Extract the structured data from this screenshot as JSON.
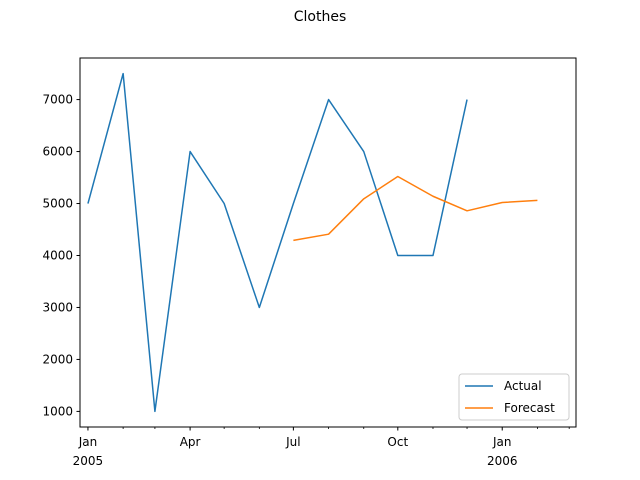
{
  "chart_data": {
    "type": "line",
    "title": "Clothes",
    "xlabel": "",
    "ylabel": "",
    "x_range": [
      "2004-12-25",
      "2006-03-07"
    ],
    "ylim": [
      700,
      7800
    ],
    "grid": false,
    "legend_placement": "lower-right",
    "y_ticks": [
      {
        "value": 1000,
        "label": "1000"
      },
      {
        "value": 2000,
        "label": "2000"
      },
      {
        "value": 3000,
        "label": "3000"
      },
      {
        "value": 4000,
        "label": "4000"
      },
      {
        "value": 5000,
        "label": "5000"
      },
      {
        "value": 6000,
        "label": "6000"
      },
      {
        "value": 7000,
        "label": "7000"
      }
    ],
    "x_major_ticks": [
      {
        "date": "2005-01-01",
        "label": "Jan",
        "sublabel": "2005"
      },
      {
        "date": "2005-04-01",
        "label": "Apr",
        "sublabel": ""
      },
      {
        "date": "2005-07-01",
        "label": "Jul",
        "sublabel": ""
      },
      {
        "date": "2005-10-01",
        "label": "Oct",
        "sublabel": ""
      },
      {
        "date": "2006-01-01",
        "label": "Jan",
        "sublabel": "2006"
      }
    ],
    "x_minor_ticks": [
      "2005-02-01",
      "2005-03-01",
      "2005-05-01",
      "2005-06-01",
      "2005-08-01",
      "2005-09-01",
      "2005-11-01",
      "2005-12-01",
      "2006-02-01",
      "2006-03-01"
    ],
    "series": [
      {
        "name": "Actual",
        "color": "#1f77b4",
        "points": [
          {
            "x": "2005-01-01",
            "y": 5000
          },
          {
            "x": "2005-02-01",
            "y": 7500
          },
          {
            "x": "2005-03-01",
            "y": 1000
          },
          {
            "x": "2005-04-01",
            "y": 6000
          },
          {
            "x": "2005-05-01",
            "y": 5000
          },
          {
            "x": "2005-06-01",
            "y": 3000
          },
          {
            "x": "2005-07-01",
            "y": 5000
          },
          {
            "x": "2005-08-01",
            "y": 7000
          },
          {
            "x": "2005-09-01",
            "y": 6000
          },
          {
            "x": "2005-10-01",
            "y": 4000
          },
          {
            "x": "2005-11-01",
            "y": 4000
          },
          {
            "x": "2005-12-01",
            "y": 7000
          }
        ]
      },
      {
        "name": "Forecast",
        "color": "#ff7f0e",
        "points": [
          {
            "x": "2005-07-01",
            "y": 4290
          },
          {
            "x": "2005-08-01",
            "y": 4410
          },
          {
            "x": "2005-09-01",
            "y": 5090
          },
          {
            "x": "2005-10-01",
            "y": 5520
          },
          {
            "x": "2005-11-01",
            "y": 5140
          },
          {
            "x": "2005-12-01",
            "y": 4860
          },
          {
            "x": "2006-01-01",
            "y": 5020
          },
          {
            "x": "2006-02-01",
            "y": 5060
          }
        ]
      }
    ]
  }
}
